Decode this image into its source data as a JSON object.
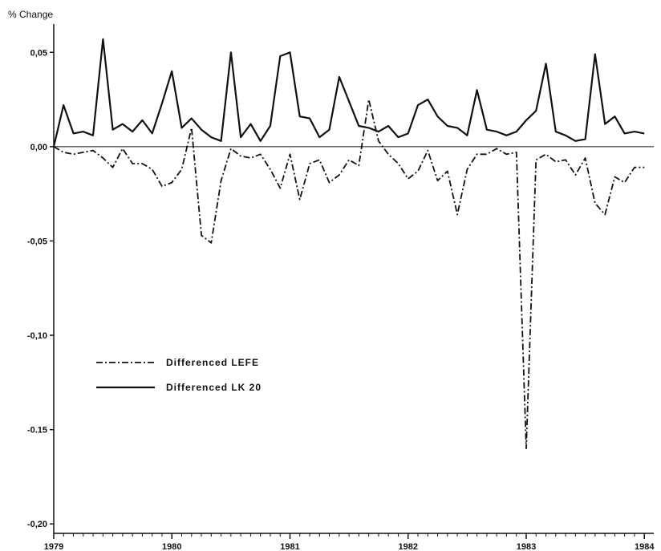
{
  "chart_data": {
    "type": "line",
    "title": "",
    "ylabel": "% Change",
    "xlabel": "",
    "ylim": [
      -0.205,
      0.065
    ],
    "xlim": [
      1979,
      1984.08
    ],
    "y_ticks": [
      {
        "value": 0.05,
        "label": "0,05"
      },
      {
        "value": 0.0,
        "label": "0,00"
      },
      {
        "value": -0.05,
        "label": "-0,05"
      },
      {
        "value": -0.1,
        "label": "-0,10"
      },
      {
        "value": -0.15,
        "label": "-0.15"
      },
      {
        "value": -0.2,
        "label": "-0,20"
      }
    ],
    "x_ticks": [
      {
        "value": 1979,
        "label": "1979"
      },
      {
        "value": 1980,
        "label": "1980"
      },
      {
        "value": 1981,
        "label": "1981"
      },
      {
        "value": 1982,
        "label": "1982"
      },
      {
        "value": 1983,
        "label": "1983"
      },
      {
        "value": 1984,
        "label": "1984"
      }
    ],
    "zero_line": true,
    "legend_position": "center-left",
    "series": [
      {
        "name": "Differenced LK 20",
        "style": "solid",
        "x": [
          1979.0,
          1979.083,
          1979.167,
          1979.25,
          1979.333,
          1979.417,
          1979.5,
          1979.583,
          1979.667,
          1979.75,
          1979.833,
          1979.917,
          1980.0,
          1980.083,
          1980.167,
          1980.25,
          1980.333,
          1980.417,
          1980.5,
          1980.583,
          1980.667,
          1980.75,
          1980.833,
          1980.917,
          1981.0,
          1981.083,
          1981.167,
          1981.25,
          1981.333,
          1981.417,
          1981.5,
          1981.583,
          1981.667,
          1981.75,
          1981.833,
          1981.917,
          1982.0,
          1982.083,
          1982.167,
          1982.25,
          1982.333,
          1982.417,
          1982.5,
          1982.583,
          1982.667,
          1982.75,
          1982.833,
          1982.917,
          1983.0,
          1983.083,
          1983.167,
          1983.25,
          1983.333,
          1983.417,
          1983.5,
          1983.583,
          1983.667,
          1983.75,
          1983.833,
          1983.917,
          1984.0
        ],
        "values": [
          0.0,
          0.022,
          0.007,
          0.008,
          0.006,
          0.057,
          0.009,
          0.012,
          0.008,
          0.014,
          0.007,
          0.023,
          0.04,
          0.01,
          0.015,
          0.009,
          0.005,
          0.003,
          0.05,
          0.005,
          0.012,
          0.003,
          0.011,
          0.048,
          0.05,
          0.016,
          0.015,
          0.005,
          0.009,
          0.037,
          0.024,
          0.011,
          0.01,
          0.008,
          0.011,
          0.005,
          0.007,
          0.022,
          0.025,
          0.016,
          0.011,
          0.01,
          0.006,
          0.03,
          0.009,
          0.008,
          0.006,
          0.008,
          0.014,
          0.019,
          0.044,
          0.008,
          0.006,
          0.003,
          0.004,
          0.049,
          0.012,
          0.016,
          0.007,
          0.008,
          0.007
        ]
      },
      {
        "name": "Differenced LEFE",
        "style": "dash-dot",
        "x": [
          1979.0,
          1979.083,
          1979.167,
          1979.25,
          1979.333,
          1979.417,
          1979.5,
          1979.583,
          1979.667,
          1979.75,
          1979.833,
          1979.917,
          1980.0,
          1980.083,
          1980.167,
          1980.25,
          1980.333,
          1980.417,
          1980.5,
          1980.583,
          1980.667,
          1980.75,
          1980.833,
          1980.917,
          1981.0,
          1981.083,
          1981.167,
          1981.25,
          1981.333,
          1981.417,
          1981.5,
          1981.583,
          1981.667,
          1981.75,
          1981.833,
          1981.917,
          1982.0,
          1982.083,
          1982.167,
          1982.25,
          1982.333,
          1982.417,
          1982.5,
          1982.583,
          1982.667,
          1982.75,
          1982.833,
          1982.917,
          1983.0,
          1983.083,
          1983.167,
          1983.25,
          1983.333,
          1983.417,
          1983.5,
          1983.583,
          1983.667,
          1983.75,
          1983.833,
          1983.917,
          1984.0
        ],
        "values": [
          0.0,
          -0.003,
          -0.004,
          -0.003,
          -0.002,
          -0.006,
          -0.011,
          -0.001,
          -0.009,
          -0.009,
          -0.012,
          -0.021,
          -0.019,
          -0.012,
          0.01,
          -0.047,
          -0.051,
          -0.018,
          -0.001,
          -0.005,
          -0.006,
          -0.004,
          -0.012,
          -0.022,
          -0.004,
          -0.028,
          -0.009,
          -0.007,
          -0.019,
          -0.015,
          -0.007,
          -0.01,
          0.025,
          0.003,
          -0.004,
          -0.009,
          -0.017,
          -0.013,
          -0.002,
          -0.018,
          -0.013,
          -0.036,
          -0.012,
          -0.004,
          -0.004,
          -0.001,
          -0.004,
          -0.003,
          -0.16,
          -0.007,
          -0.004,
          -0.008,
          -0.007,
          -0.015,
          -0.006,
          -0.03,
          -0.036,
          -0.016,
          -0.019,
          -0.011,
          -0.011
        ]
      }
    ]
  }
}
